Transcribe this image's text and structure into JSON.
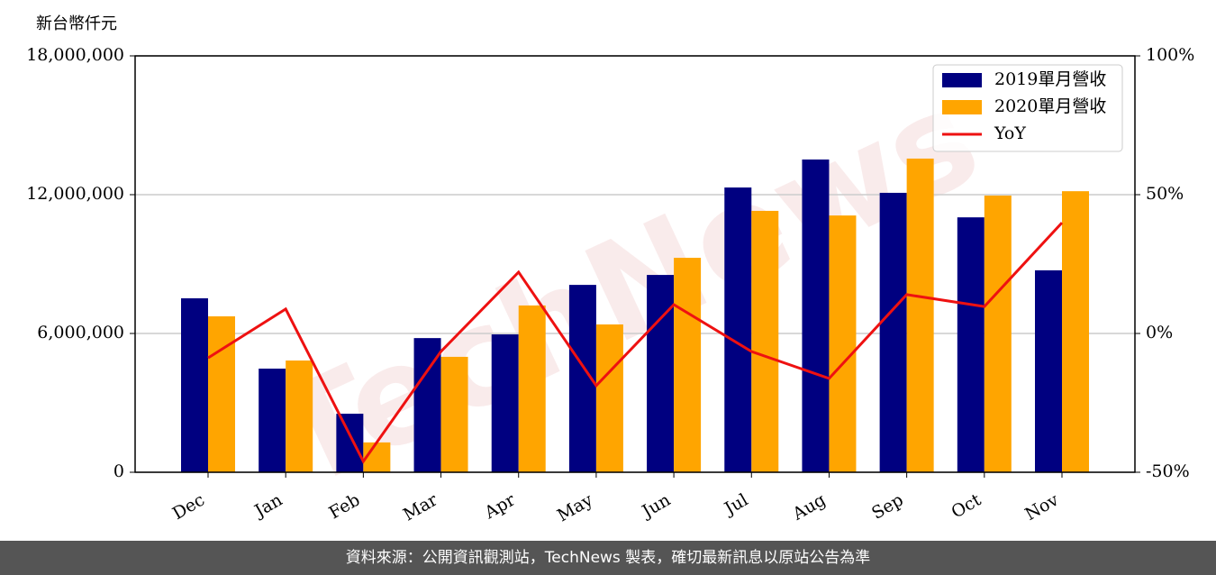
{
  "chart_data": {
    "type": "bar",
    "y_label": "新台幣仟元",
    "watermark": "TechNews",
    "categories": [
      "Dec",
      "Jan",
      "Feb",
      "Mar",
      "Apr",
      "May",
      "Jun",
      "Jul",
      "Aug",
      "Sep",
      "Oct",
      "Nov"
    ],
    "series": [
      {
        "name": "2019單月營收",
        "color": "#000080",
        "type": "bar",
        "values": [
          7520000,
          4480000,
          2530000,
          5800000,
          5960000,
          8100000,
          8530000,
          12310000,
          13520000,
          12080000,
          11020000,
          8730000
        ]
      },
      {
        "name": "2020單月營收",
        "color": "#ffa500",
        "type": "bar",
        "values": [
          6740000,
          4830000,
          1290000,
          4990000,
          7210000,
          6390000,
          9270000,
          11300000,
          11100000,
          13560000,
          11960000,
          12150000
        ]
      },
      {
        "name": "YoY",
        "color": "#ee1111",
        "type": "line",
        "axis": "y2",
        "values": [
          -8.8,
          8.8,
          -46.1,
          -6.5,
          22.1,
          -18.8,
          10.4,
          -6.5,
          -16.2,
          14.0,
          9.7,
          39.9
        ]
      }
    ],
    "ylim": [
      0,
      18000000
    ],
    "yticks": [
      0,
      {
        "value": 6000000,
        "label": "6,000,000"
      },
      {
        "value": 12000000,
        "label": "12,000,000"
      },
      {
        "value": 18000000,
        "label": "18,000,000"
      }
    ],
    "y2lim": [
      -50,
      100
    ],
    "y2ticks": [
      {
        "value": -50,
        "label": "-50%"
      },
      {
        "value": 0,
        "label": "0%"
      },
      {
        "value": 50,
        "label": "50%"
      },
      {
        "value": 100,
        "label": "100%"
      }
    ],
    "grid": true,
    "legend": "upper right"
  },
  "footer": "資料來源：公開資訊觀測站，TechNews 製表，確切最新訊息以原站公告為準"
}
